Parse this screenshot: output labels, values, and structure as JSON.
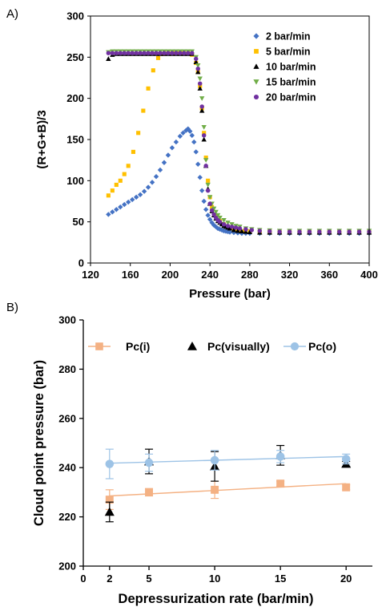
{
  "chart_data": [
    {
      "panel": "A)",
      "type": "scatter",
      "xlabel": "Pressure (bar)",
      "ylabel": "(R+G+B)/3",
      "xlim": [
        120,
        400
      ],
      "ylim": [
        0,
        300
      ],
      "xticks": [
        "120",
        "160",
        "200",
        "240",
        "280",
        "320",
        "360",
        "400"
      ],
      "yticks": [
        "0",
        "50",
        "100",
        "150",
        "200",
        "250",
        "300"
      ],
      "legend_position": "top-right",
      "series": [
        {
          "name": "2 bar/min",
          "color": "#4472C4",
          "marker": "diamond",
          "x": [
            138,
            142,
            146,
            150,
            154,
            158,
            162,
            166,
            170,
            174,
            178,
            182,
            186,
            190,
            194,
            198,
            202,
            206,
            210,
            213,
            216,
            218,
            220,
            222,
            224,
            226,
            228,
            230,
            232,
            234,
            236,
            238,
            240,
            242,
            244,
            246,
            248,
            250,
            252,
            254,
            256,
            258,
            260,
            264,
            268,
            272,
            276,
            280,
            290,
            300,
            310,
            320,
            330,
            340,
            350,
            360,
            370,
            380,
            390,
            400
          ],
          "y": [
            59,
            62,
            65,
            68,
            71,
            74,
            77,
            80,
            83,
            87,
            92,
            98,
            105,
            113,
            122,
            131,
            140,
            147,
            154,
            158,
            161,
            163,
            160,
            155,
            147,
            135,
            120,
            104,
            88,
            75,
            65,
            58,
            53,
            49,
            46,
            44,
            42,
            41,
            40,
            39,
            38.5,
            38,
            37.5,
            37,
            36.5,
            36,
            36,
            36,
            36,
            36,
            36,
            36,
            36,
            36,
            36,
            36,
            36,
            36,
            36,
            36
          ]
        },
        {
          "name": "5 bar/min",
          "color": "#FFC000",
          "marker": "square",
          "x": [
            138,
            142,
            146,
            150,
            154,
            158,
            163,
            168,
            173,
            178,
            183,
            188,
            193,
            198,
            203,
            208,
            213,
            218,
            222,
            226,
            228,
            230,
            232,
            234,
            236,
            238,
            240,
            242,
            246,
            250,
            254,
            258,
            262,
            266,
            270,
            275,
            280,
            290,
            300,
            310,
            320,
            330,
            340,
            350,
            360,
            370,
            380,
            390,
            400
          ],
          "y": [
            82,
            88,
            95,
            100,
            108,
            118,
            135,
            158,
            185,
            212,
            234,
            249,
            254,
            255,
            255,
            255,
            255,
            255,
            253,
            243,
            232,
            215,
            188,
            158,
            128,
            100,
            80,
            68,
            57,
            51,
            47,
            44,
            42,
            41,
            40,
            39,
            38.5,
            38,
            38,
            37.5,
            37.5,
            37.5,
            37.5,
            37.5,
            37.5,
            37.5,
            37.5,
            37.5,
            37.5
          ]
        },
        {
          "name": "10 bar/min",
          "color": "#000000",
          "marker": "triangle",
          "x": [
            138,
            142,
            146,
            150,
            154,
            158,
            162,
            166,
            170,
            174,
            178,
            182,
            186,
            190,
            194,
            198,
            202,
            206,
            210,
            214,
            218,
            222,
            226,
            228,
            230,
            232,
            234,
            236,
            238,
            240,
            242,
            244,
            246,
            248,
            250,
            252,
            254,
            256,
            258,
            260,
            264,
            268,
            272,
            276,
            280,
            290,
            300,
            310,
            320,
            330,
            340,
            350,
            360,
            370,
            380,
            390,
            400
          ],
          "y": [
            248,
            253,
            254,
            254,
            254,
            254,
            254,
            254,
            254,
            254,
            254,
            254,
            254,
            254,
            254,
            254,
            254,
            254,
            254,
            254,
            254,
            254,
            244,
            232,
            212,
            185,
            150,
            118,
            90,
            72,
            63,
            58,
            54,
            51,
            49,
            47,
            45,
            44,
            43,
            42,
            40,
            39,
            38.5,
            38,
            37.5,
            37,
            37,
            37,
            37,
            37,
            37,
            37,
            37,
            37,
            37,
            37,
            37
          ]
        },
        {
          "name": "15 bar/min",
          "color": "#70AD47",
          "marker": "triangle-down",
          "x": [
            138,
            142,
            146,
            150,
            154,
            158,
            162,
            166,
            170,
            174,
            178,
            182,
            186,
            190,
            194,
            198,
            202,
            206,
            210,
            214,
            218,
            222,
            226,
            228,
            230,
            232,
            234,
            236,
            238,
            240,
            242,
            244,
            246,
            248,
            250,
            254,
            258,
            262,
            266,
            270,
            276,
            282,
            290,
            300,
            310,
            320,
            330,
            340,
            350,
            360,
            370,
            380,
            390,
            400
          ],
          "y": [
            256,
            257,
            257,
            257,
            257,
            257,
            257,
            257,
            257,
            257,
            257,
            257,
            257,
            257,
            257,
            257,
            257,
            257,
            257,
            257,
            257,
            257,
            250,
            240,
            224,
            200,
            165,
            125,
            95,
            80,
            72,
            66,
            62,
            58,
            55,
            52,
            49,
            47,
            45,
            44,
            42,
            41,
            40,
            39.5,
            39,
            39,
            39,
            39,
            39,
            39,
            39,
            39,
            39,
            39
          ]
        },
        {
          "name": "20 bar/min",
          "color": "#7030A0",
          "marker": "circle",
          "x": [
            138,
            142,
            146,
            150,
            154,
            158,
            162,
            166,
            170,
            174,
            178,
            182,
            186,
            190,
            194,
            198,
            202,
            206,
            210,
            214,
            218,
            222,
            226,
            228,
            230,
            232,
            234,
            236,
            238,
            240,
            242,
            244,
            246,
            248,
            250,
            254,
            258,
            262,
            266,
            270,
            276,
            282,
            290,
            300,
            310,
            320,
            330,
            340,
            350,
            360,
            370,
            380,
            390,
            400
          ],
          "y": [
            255,
            255,
            255,
            255,
            255,
            255,
            255,
            255,
            255,
            255,
            255,
            255,
            255,
            255,
            255,
            255,
            255,
            255,
            255,
            255,
            255,
            255,
            248,
            236,
            218,
            190,
            155,
            118,
            88,
            72,
            64,
            59,
            55,
            52,
            50,
            47,
            45,
            44,
            43,
            42,
            41,
            40,
            39,
            38.5,
            38,
            38,
            38,
            38,
            38,
            38,
            38,
            38,
            38,
            38
          ]
        }
      ]
    },
    {
      "panel": "B)",
      "type": "scatter",
      "xlabel": "Depressurization rate (bar/min)",
      "ylabel": "Cloud point pressure (bar)",
      "xlim": [
        0,
        22
      ],
      "ylim": [
        200,
        300
      ],
      "xticks": [
        "0",
        "2",
        "5",
        "10",
        "15",
        "20"
      ],
      "xtick_values": [
        0,
        2,
        5,
        10,
        15,
        20
      ],
      "yticks": [
        "200",
        "220",
        "240",
        "260",
        "280",
        "300"
      ],
      "legend_position": "top",
      "series": [
        {
          "name": "Pc(i)",
          "color": "#F4B183",
          "marker": "square",
          "x": [
            2,
            5,
            10,
            15,
            20
          ],
          "y": [
            227,
            230,
            231,
            233.5,
            232
          ],
          "err": [
            4,
            1.5,
            3.5,
            1,
            1
          ],
          "trend": [
            [
              2,
              228.5
            ],
            [
              20,
              233.5
            ]
          ]
        },
        {
          "name": "Pc(visually)",
          "color": "#000000",
          "marker": "triangle",
          "x": [
            2,
            5,
            10,
            15,
            20
          ],
          "y": [
            222,
            242.5,
            240.5,
            245,
            241.5
          ],
          "err": [
            4,
            5,
            6,
            4,
            1
          ]
        },
        {
          "name": "Pc(o)",
          "color": "#9DC3E6",
          "marker": "circle",
          "x": [
            2,
            5,
            10,
            15,
            20
          ],
          "y": [
            241.5,
            242,
            243,
            244.5,
            243.5
          ],
          "err": [
            6,
            3.5,
            4,
            2.5,
            2
          ],
          "trend": [
            [
              2,
              241.8
            ],
            [
              20,
              244.5
            ]
          ]
        }
      ]
    }
  ]
}
